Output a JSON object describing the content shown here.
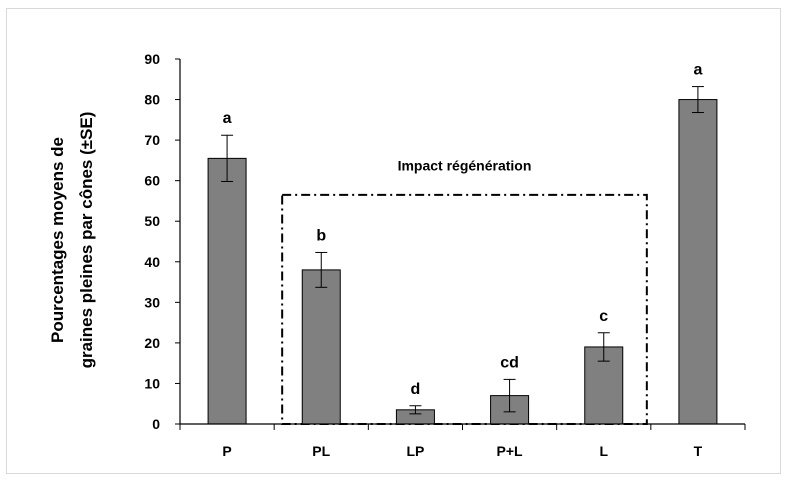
{
  "chart_data": {
    "type": "bar",
    "title": "",
    "xlabel": "",
    "ylabel_lines": [
      "Pourcentages moyens de",
      "graines pleines par cônes (±SE)"
    ],
    "ylim": [
      0,
      90
    ],
    "yticks": [
      0,
      10,
      20,
      30,
      40,
      50,
      60,
      70,
      80,
      90
    ],
    "categories": [
      "P",
      "PL",
      "LP",
      "P+L",
      "L",
      "T"
    ],
    "values": [
      65.5,
      38,
      3.5,
      7,
      19,
      80
    ],
    "errors": [
      5.7,
      4.3,
      1.0,
      4.0,
      3.5,
      3.2
    ],
    "significance_labels": [
      "a",
      "b",
      "d",
      "cd",
      "c",
      "a"
    ],
    "grid": false,
    "bar_color": "#808080",
    "annotation": {
      "text": "Impact régénération",
      "categories": [
        "PL",
        "LP",
        "P+L",
        "L"
      ],
      "style": "dash-dot box"
    }
  }
}
